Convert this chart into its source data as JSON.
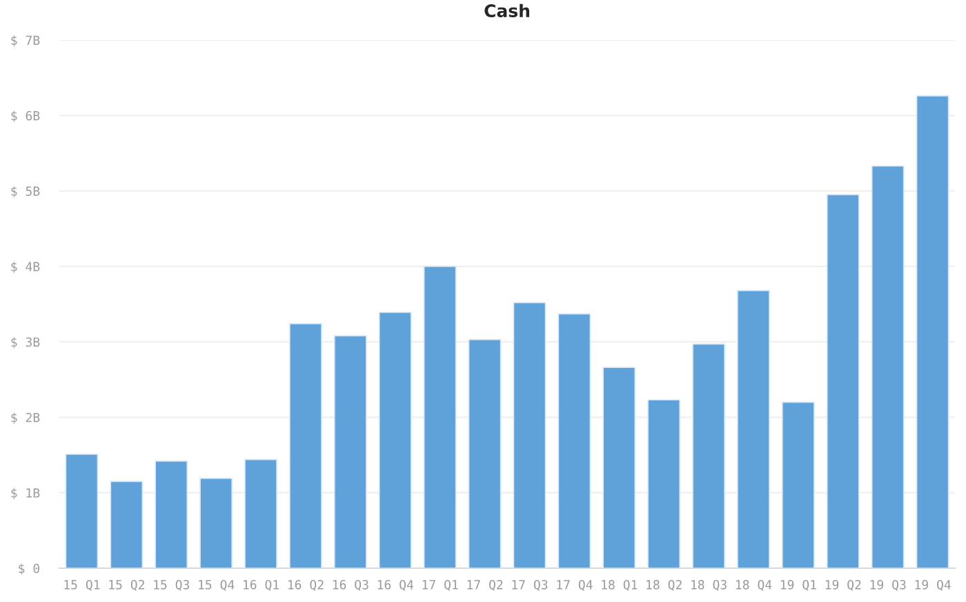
{
  "chart_data": {
    "type": "bar",
    "title": "Cash",
    "categories": [
      "15 Q1",
      "15 Q2",
      "15 Q3",
      "15 Q4",
      "16 Q1",
      "16 Q2",
      "16 Q3",
      "16 Q4",
      "17 Q1",
      "17 Q2",
      "17 Q3",
      "17 Q4",
      "18 Q1",
      "18 Q2",
      "18 Q3",
      "18 Q4",
      "19 Q1",
      "19 Q2",
      "19 Q3",
      "19 Q4"
    ],
    "values": [
      1.51,
      1.15,
      1.42,
      1.19,
      1.44,
      3.24,
      3.08,
      3.39,
      4.0,
      3.03,
      3.52,
      3.37,
      2.66,
      2.23,
      2.97,
      3.68,
      2.2,
      4.95,
      5.33,
      6.26
    ],
    "color": "#5fa2da",
    "ylim": [
      0,
      7
    ],
    "yticks": [
      {
        "value": 0,
        "label": "$ 0"
      },
      {
        "value": 1,
        "label": "$ 1B"
      },
      {
        "value": 2,
        "label": "$ 2B"
      },
      {
        "value": 3,
        "label": "$ 3B"
      },
      {
        "value": 4,
        "label": "$ 4B"
      },
      {
        "value": 5,
        "label": "$ 5B"
      },
      {
        "value": 6,
        "label": "$ 6B"
      },
      {
        "value": 7,
        "label": "$ 7B"
      }
    ],
    "grid": "y"
  }
}
